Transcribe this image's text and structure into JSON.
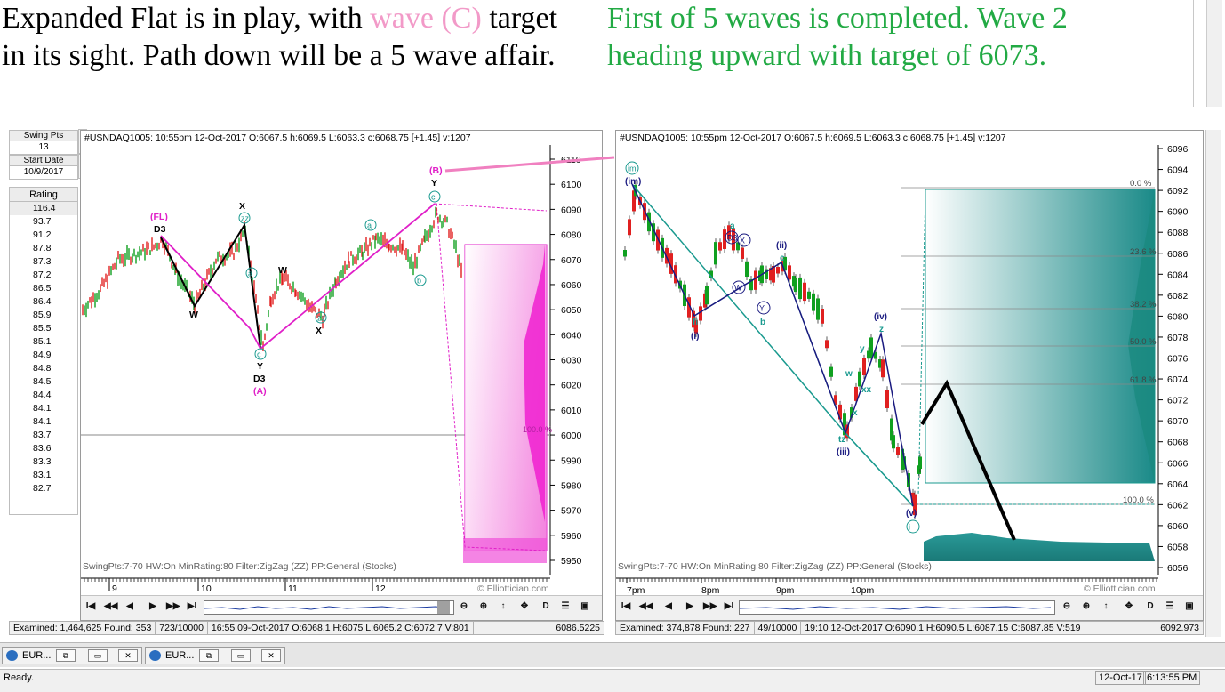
{
  "headline_left": {
    "line1_a": "Expanded Flat is in play, with ",
    "line1_pink": "wave (C)",
    "line1_b": " target",
    "line2": "in its sight.  Path down will be a 5 wave affair."
  },
  "headline_right": {
    "line1": "First of 5 waves is completed. Wave 2",
    "line2": "heading upward with target of 6073."
  },
  "controls": {
    "swing_pts_label": "Swing Pts",
    "swing_pts_value": "13",
    "start_date_label": "Start Date",
    "start_date_value": "10/9/2017",
    "rating_label": "Rating",
    "ratings": [
      "116.4",
      "93.7",
      "91.2",
      "87.8",
      "87.3",
      "87.2",
      "86.5",
      "86.4",
      "85.9",
      "85.5",
      "85.1",
      "84.9",
      "84.8",
      "84.5",
      "84.4",
      "84.1",
      "84.1",
      "83.7",
      "83.6",
      "83.3",
      "83.1",
      "82.7"
    ]
  },
  "left_chart": {
    "info": "#USNDAQ1005:  10:55pm 12-Oct-2017  O:6067.5 h:6069.5 L:6063.3 c:6068.75 [+1.45] v:1207",
    "footer": "SwingPts:7-70 HW:On  MinRating:80  Filter:ZigZag (ZZ)  PP:General (Stocks)",
    "copyright": "© Elliottician.com",
    "y_ticks": [
      "6110",
      "6100",
      "6090",
      "6080",
      "6070",
      "6060",
      "6050",
      "6040",
      "6030",
      "6020",
      "6010",
      "6000",
      "5990",
      "5980",
      "5970",
      "5960",
      "5950"
    ],
    "x_ticks": [
      "9",
      "10",
      "11",
      "12"
    ],
    "labels": {
      "fl": "(FL)",
      "d3a": "D3",
      "w1": "W",
      "x1": "X",
      "zz1": "zz",
      "a1": "a",
      "c1": "c",
      "y1": "Y",
      "d3b": "D3",
      "A": "(A)",
      "w2": "W",
      "zz2": "zz",
      "x2": "X",
      "a2": "a",
      "b2": "b",
      "c2": "c",
      "Y2": "Y",
      "B": "(B)",
      "fib": "100.0 %"
    }
  },
  "right_chart": {
    "info": "#USNDAQ1005:  10:55pm 12-Oct-2017  O:6067.5 h:6069.5 L:6063.3 c:6068.75 [+1.45] v:1207",
    "footer": "SwingPts:7-70 HW:On  MinRating:80  Filter:ZigZag (ZZ)  PP:General (Stocks)",
    "copyright": "© Elliottician.com",
    "y_ticks": [
      "6096",
      "6094",
      "6092",
      "6090",
      "6088",
      "6086",
      "6084",
      "6082",
      "6080",
      "6078",
      "6076",
      "6074",
      "6072",
      "6070",
      "6068",
      "6066",
      "6064",
      "6062",
      "6060",
      "6058",
      "6056"
    ],
    "x_ticks": [
      "7pm",
      "8pm",
      "9pm",
      "10pm"
    ],
    "labels": {
      "im1": "im",
      "im2": "(im)",
      "a": "a",
      "d3": "D3",
      "x": "X",
      "w": "W",
      "yb": "Y",
      "b": "b",
      "ii": "(ii)",
      "c": "c",
      "fi": "fi",
      "i": "(i)",
      "iv": "(iv)",
      "z": "z",
      "y": "y",
      "w2": "w",
      "xx": "xx",
      "x2": "x",
      "tz": "tz",
      "iii": "(iii)",
      "v": "(v)",
      "one": "i",
      "fib0": "0.0 %",
      "fib100": "100.0 %",
      "fib236": "23.6 %",
      "fib382": "38.2 %",
      "fib500": "50.0 %",
      "fib618": "61.8 %"
    }
  },
  "status_left": {
    "examined": "Examined: 1,464,625  Found: 353",
    "count": "723/10000",
    "bar": "16:55 09-Oct-2017  O:6068.1 H:6075 L:6065.2 C:6072.7 V:801",
    "price": "6086.5225"
  },
  "status_right": {
    "examined": "Examined: 374,878  Found: 227",
    "count": "49/10000",
    "bar": "19:10 12-Oct-2017  O:6090.1 H:6090.5 L:6087.15 C:6087.85 V:519",
    "price": "6092.973"
  },
  "taskbar": {
    "task1": "EUR...",
    "task2": "EUR..."
  },
  "bottom": {
    "ready": "Ready.",
    "date": "12-Oct-17",
    "time": "6:13:55 PM"
  },
  "nav": {
    "first": "I◀",
    "rewind": "◀◀",
    "prev": "◀",
    "next": "▶",
    "ffwd": "▶▶",
    "last": "▶I",
    "zoom_out": "⊖",
    "zoom_in": "⊕",
    "vfit": "↕",
    "move": "✥",
    "d": "D"
  },
  "colors": {
    "magenta": "#e020c8",
    "teal": "#1a9a8f",
    "navy": "#1a1a80",
    "green": "#22aa44",
    "red": "#e02020",
    "pink_text": "#f29ac8"
  }
}
